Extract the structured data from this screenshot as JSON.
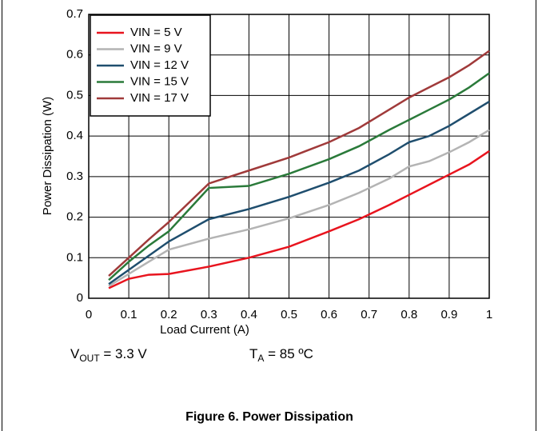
{
  "chart_data": {
    "type": "line",
    "xlabel": "Load Current (A)",
    "ylabel": "Power Dissipation (W)",
    "x": [
      0.05,
      0.1,
      0.15,
      0.2,
      0.3,
      0.4,
      0.5,
      0.6,
      0.675,
      0.75,
      0.8,
      0.85,
      0.9,
      0.95,
      1
    ],
    "series": [
      {
        "name": "VIN = 5 V",
        "color": "#e8141e",
        "values": [
          0.025,
          0.048,
          0.058,
          0.06,
          0.078,
          0.1,
          0.127,
          0.165,
          0.195,
          0.23,
          0.255,
          0.28,
          0.305,
          0.33,
          0.363
        ]
      },
      {
        "name": "VIN = 9 V",
        "color": "#b4b4b4",
        "values": [
          0.03,
          0.06,
          0.09,
          0.12,
          0.147,
          0.17,
          0.197,
          0.23,
          0.26,
          0.295,
          0.325,
          0.338,
          0.36,
          0.385,
          0.415
        ]
      },
      {
        "name": "VIN = 12 V",
        "color": "#1f4e6e",
        "values": [
          0.035,
          0.07,
          0.105,
          0.14,
          0.195,
          0.22,
          0.25,
          0.285,
          0.315,
          0.355,
          0.385,
          0.4,
          0.425,
          0.455,
          0.485
        ]
      },
      {
        "name": "VIN = 15 V",
        "color": "#2a7a3a",
        "values": [
          0.045,
          0.09,
          0.13,
          0.165,
          0.272,
          0.277,
          0.307,
          0.343,
          0.375,
          0.415,
          0.44,
          0.465,
          0.49,
          0.52,
          0.555
        ]
      },
      {
        "name": "VIN = 17 V",
        "color": "#a03a3a",
        "values": [
          0.055,
          0.1,
          0.145,
          0.188,
          0.283,
          0.315,
          0.347,
          0.385,
          0.42,
          0.465,
          0.495,
          0.52,
          0.545,
          0.575,
          0.61
        ]
      }
    ],
    "xlim": [
      0,
      1
    ],
    "xticks": [
      0,
      0.1,
      0.2,
      0.3,
      0.4,
      0.5,
      0.6,
      0.7,
      0.8,
      0.9,
      1
    ],
    "ylim": [
      0,
      0.7
    ],
    "yticks": [
      0,
      0.1,
      0.2,
      0.3,
      0.4,
      0.5,
      0.6,
      0.7
    ],
    "grid": true,
    "legend": "upper-left",
    "annotations": [
      {
        "main": "V",
        "sub": "OUT",
        "rest": " = 3.3 V"
      },
      {
        "main": "T",
        "sub": "A",
        "rest": " = 85 ºC"
      }
    ],
    "caption": "Figure 6. Power Dissipation"
  }
}
